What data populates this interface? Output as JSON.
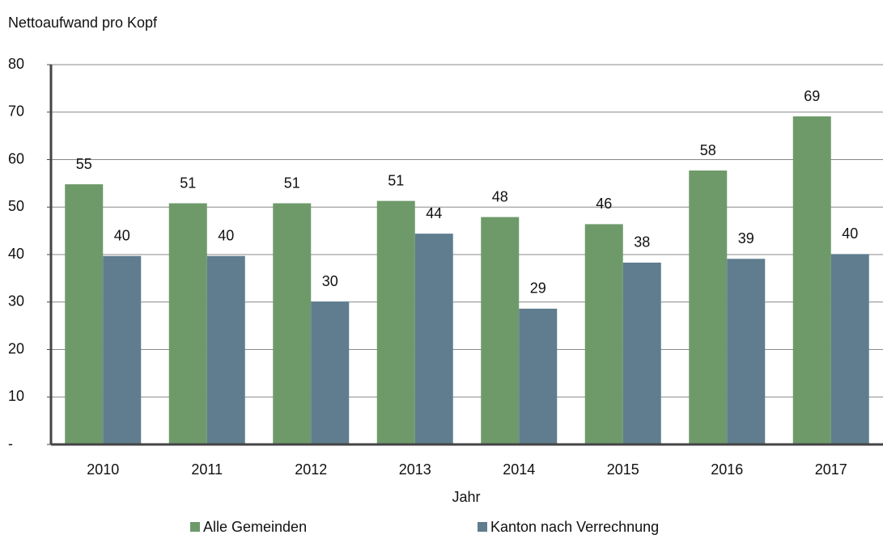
{
  "chart_data": {
    "type": "bar",
    "ylabel": "Nettoaufwand pro Kopf",
    "xlabel": "Jahr",
    "categories": [
      "2010",
      "2011",
      "2012",
      "2013",
      "2014",
      "2015",
      "2016",
      "2017"
    ],
    "series": [
      {
        "name": "Alle Gemeinden",
        "color": "#6e9a6a",
        "values": [
          54.8,
          50.8,
          50.8,
          51.3,
          47.9,
          46.4,
          57.7,
          69.1
        ]
      },
      {
        "name": "Kanton nach Verrechnung",
        "color": "#5f7d8e",
        "values": [
          39.7,
          39.7,
          30.1,
          44.4,
          28.6,
          38.3,
          39.1,
          40.1
        ]
      }
    ],
    "value_labels": [
      [
        "55",
        "51",
        "51",
        "51",
        "48",
        "46",
        "58",
        "69"
      ],
      [
        "40",
        "40",
        "30",
        "44",
        "29",
        "38",
        "39",
        "40"
      ]
    ],
    "ylim": [
      0,
      80
    ],
    "yticks": [
      {
        "value": 0,
        "label": "-"
      },
      10,
      20,
      30,
      40,
      50,
      60,
      70,
      80
    ],
    "grid": true
  }
}
